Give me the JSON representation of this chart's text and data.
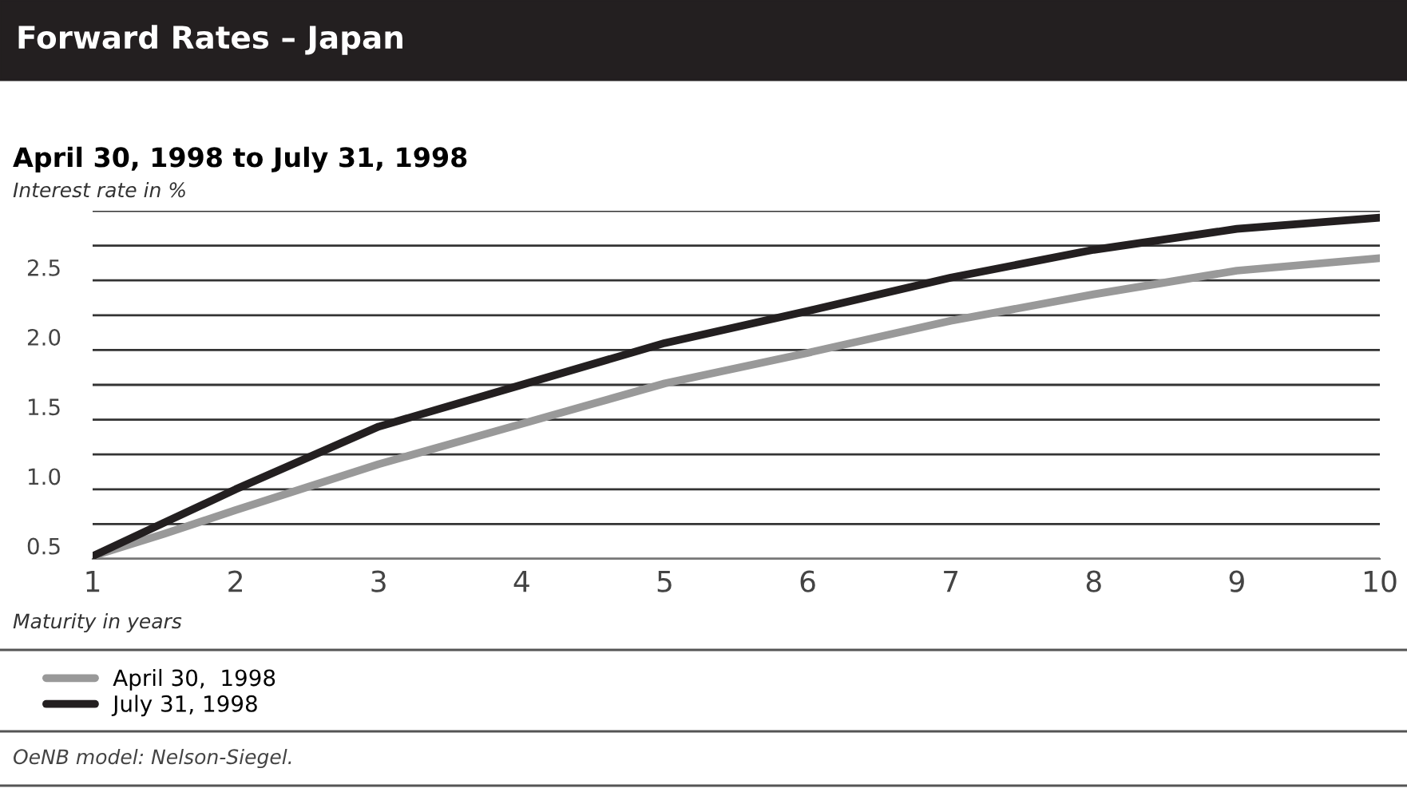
{
  "chart_data": {
    "type": "line",
    "title": "Forward Rates – Japan",
    "subtitle": "April 30, 1998 to July 31, 1998",
    "ylabel": "Interest rate in %",
    "xlabel": "Maturity in years",
    "x": [
      1,
      1.5,
      2,
      3,
      4,
      5,
      6,
      7,
      8,
      9,
      10
    ],
    "series": [
      {
        "name": "April 30,  1998",
        "color": "#999999",
        "values": [
          0.52,
          0.68,
          0.85,
          1.18,
          1.47,
          1.76,
          1.98,
          2.21,
          2.4,
          2.57,
          2.66
        ]
      },
      {
        "name": "July 31, 1998",
        "color": "#231f20",
        "values": [
          0.52,
          0.76,
          1.0,
          1.45,
          1.75,
          2.05,
          2.28,
          2.52,
          2.72,
          2.87,
          2.95
        ]
      }
    ],
    "xlim": [
      1,
      10
    ],
    "xticks": [
      1,
      2,
      3,
      4,
      5,
      6,
      7,
      8,
      9,
      10
    ],
    "ylim": [
      0.5,
      3.0
    ],
    "yticks": [
      0.5,
      {
        "value": 0.75,
        "label": null
      },
      {
        "value": 1.0,
        "label": "1.0"
      },
      {
        "value": 1.25,
        "label": null
      },
      1.5,
      {
        "value": 1.75,
        "label": null
      },
      {
        "value": 2.0,
        "label": "2.0"
      },
      {
        "value": 2.25,
        "label": null
      },
      2.5,
      {
        "value": 2.75,
        "label": null
      },
      {
        "value": 3.0,
        "label": null
      }
    ],
    "grid": "y",
    "legend": "bottom",
    "marker": "none",
    "line_style": "solid",
    "annotations": [
      "OeNB model: Nelson-Siegel."
    ]
  }
}
